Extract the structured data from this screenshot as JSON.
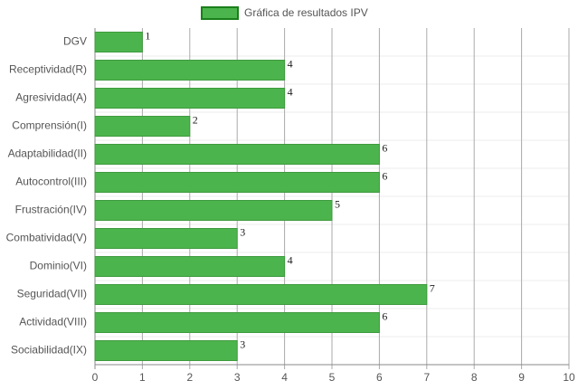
{
  "chart_data": {
    "type": "hbar",
    "categories": [
      "DGV",
      "Receptividad(R)",
      "Agresividad(A)",
      "Comprensión(I)",
      "Adaptabilidad(II)",
      "Autocontrol(III)",
      "Frustración(IV)",
      "Combatividad(V)",
      "Dominio(VI)",
      "Seguridad(VII)",
      "Actividad(VIII)",
      "Sociabilidad(IX)"
    ],
    "series": [
      {
        "name": "Gráfica de resultados IPV",
        "color": "#4cb44c",
        "values": [
          1,
          4,
          4,
          2,
          6,
          6,
          5,
          3,
          4,
          7,
          6,
          3
        ]
      }
    ],
    "xlim": [
      0,
      10
    ],
    "xticks": [
      0,
      1,
      2,
      3,
      4,
      5,
      6,
      7,
      8,
      9,
      10
    ],
    "grid": true,
    "legend": "top"
  }
}
